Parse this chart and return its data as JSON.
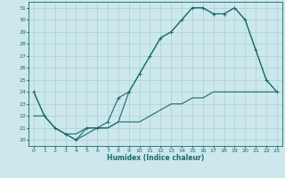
{
  "xlabel": "Humidex (Indice chaleur)",
  "bg_color": "#cce8ec",
  "grid_color": "#aacfd4",
  "line_color": "#1a6b6b",
  "xlim": [
    -0.5,
    23.5
  ],
  "ylim": [
    19.5,
    31.5
  ],
  "xticks": [
    0,
    1,
    2,
    3,
    4,
    5,
    6,
    7,
    8,
    9,
    10,
    11,
    12,
    13,
    14,
    15,
    16,
    17,
    18,
    19,
    20,
    21,
    22,
    23
  ],
  "yticks": [
    20,
    21,
    22,
    23,
    24,
    25,
    26,
    27,
    28,
    29,
    30,
    31
  ],
  "line1_x": [
    0,
    1,
    2,
    3,
    4,
    5,
    6,
    7,
    8,
    9,
    10,
    11,
    12,
    13,
    14,
    15,
    16,
    17,
    18,
    19,
    20,
    21,
    22,
    23
  ],
  "line1_y": [
    24,
    22,
    21,
    20.5,
    20,
    21,
    21,
    21.5,
    23.5,
    24,
    25.5,
    27,
    28.5,
    29,
    30,
    31,
    31,
    30.5,
    30.5,
    31,
    30,
    27.5,
    25,
    24
  ],
  "line2_x": [
    0,
    1,
    2,
    3,
    4,
    5,
    6,
    7,
    8,
    9,
    10,
    11,
    12,
    13,
    14,
    15,
    16,
    17,
    18,
    19,
    20,
    21,
    22,
    23
  ],
  "line2_y": [
    24,
    22,
    21,
    20.5,
    20.5,
    21,
    21,
    21,
    21.5,
    24,
    25.5,
    27,
    28.5,
    29,
    30,
    31,
    31,
    30.5,
    30.5,
    31,
    30,
    27.5,
    25,
    24
  ],
  "line3_x": [
    0,
    1,
    2,
    3,
    4,
    5,
    6,
    7,
    8,
    9,
    10,
    11,
    12,
    13,
    14,
    15,
    16,
    17,
    18,
    19,
    20,
    21,
    22,
    23
  ],
  "line3_y": [
    22,
    22,
    21,
    20.5,
    20,
    20.5,
    21,
    21,
    21.5,
    21.5,
    21.5,
    22,
    22.5,
    23,
    23,
    23.5,
    23.5,
    24,
    24,
    24,
    24,
    24,
    24,
    24
  ]
}
